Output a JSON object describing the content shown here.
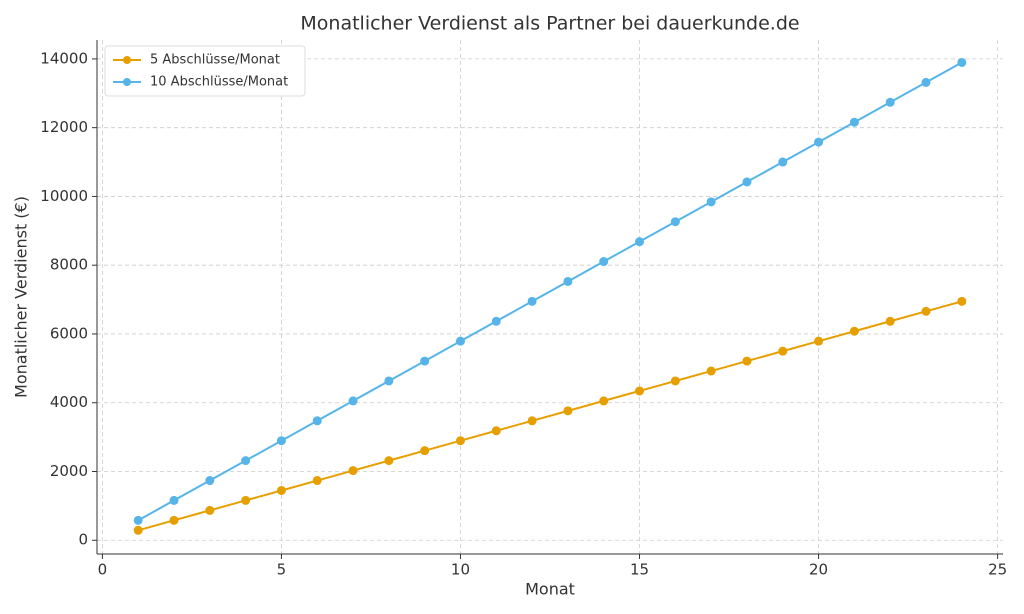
{
  "chart_data": {
    "type": "line",
    "title": "Monatlicher Verdienst als Partner bei dauerkunde.de",
    "x_label": "Monat",
    "y_label": "Monatlicher Verdienst (€)",
    "x": [
      1,
      2,
      3,
      4,
      5,
      6,
      7,
      8,
      9,
      10,
      11,
      12,
      13,
      14,
      15,
      16,
      17,
      18,
      19,
      20,
      21,
      22,
      23,
      24
    ],
    "series": [
      {
        "name": "5 Abschlüsse/Monat",
        "color": "#e69f00",
        "values": [
          289.5,
          579,
          868.5,
          1158,
          1447.5,
          1737,
          2026.5,
          2316,
          2605.5,
          2895,
          3184.5,
          3474,
          3763.5,
          4053,
          4342.5,
          4632,
          4921.5,
          5211,
          5500.5,
          5790,
          6079.5,
          6369,
          6658.5,
          6948
        ]
      },
      {
        "name": "10 Abschlüsse/Monat",
        "color": "#56b4e9",
        "values": [
          579,
          1158,
          1737,
          2316,
          2895,
          3474,
          4053,
          4632,
          5211,
          5790,
          6369,
          6948,
          7527,
          8106,
          8685,
          9264,
          9843,
          10422,
          11001,
          11580,
          12159,
          12738,
          13317,
          13896
        ]
      }
    ],
    "xlim": [
      -0.15,
      25.15
    ],
    "xticks": [
      0,
      5,
      10,
      15,
      20,
      25
    ],
    "ylim": [
      -400,
      14550
    ],
    "yticks": [
      0,
      2000,
      4000,
      6000,
      8000,
      10000,
      12000,
      14000
    ],
    "grid": true,
    "legend": "upper-left"
  }
}
